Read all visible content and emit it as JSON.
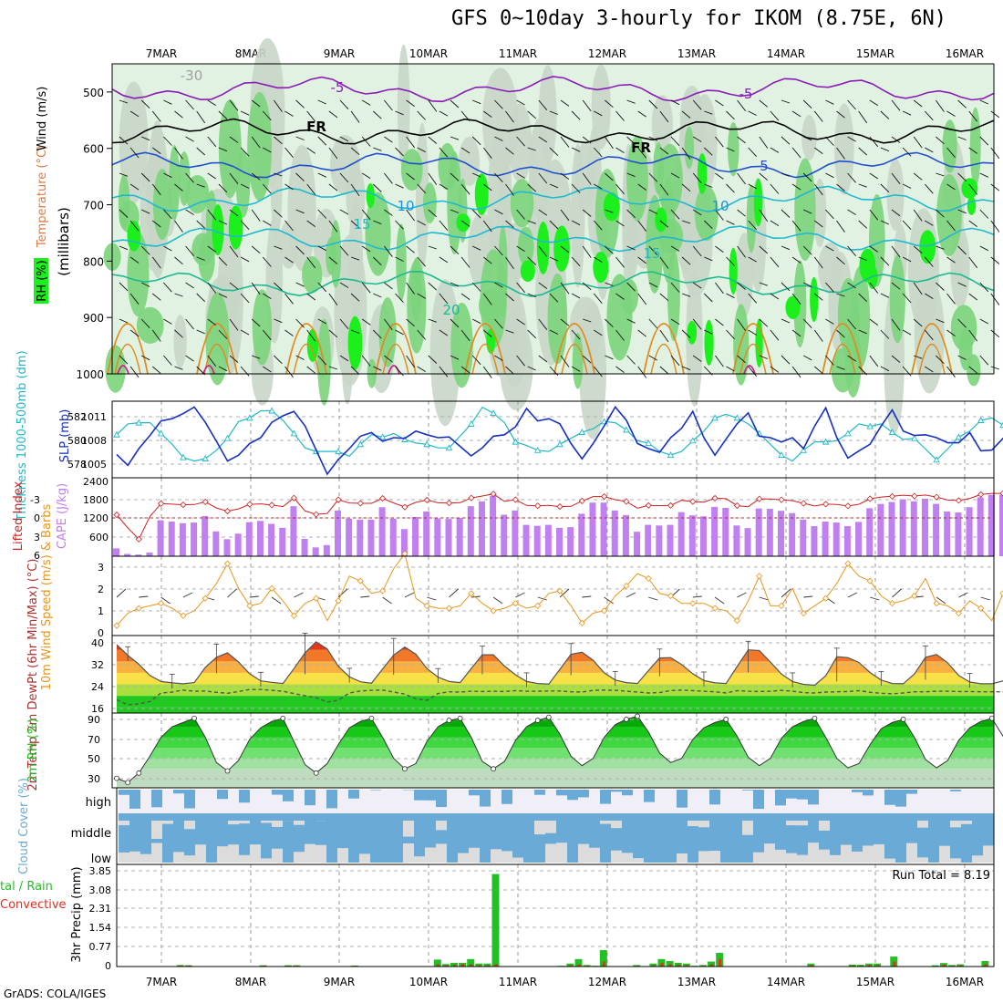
{
  "title": "GFS 0~10day 3-hourly for IKOM (8.75E, 6N)",
  "credit": "GrADS: COLA/IGES",
  "dates": [
    "7MAR",
    "8MAR",
    "9MAR",
    "10MAR",
    "11MAR",
    "12MAR",
    "13MAR",
    "14MAR",
    "15MAR",
    "16MAR"
  ],
  "colors": {
    "rh_light": "#e2f2e2",
    "rh_mid": "#c8d6c8",
    "rh_green": "#7bd47b",
    "rh_bright": "#1cf01c",
    "temp_purple": "#8a1cb8",
    "temp_blue1": "#2050d0",
    "temp_blue2": "#1e90e0",
    "temp_cyan": "#20b8d0",
    "temp_teal": "#1cb890",
    "temp_orange": "#e08a20",
    "temp_magenta": "#d0208a",
    "slp": "#1530c0",
    "thickness": "#20b8c8",
    "cape": "#c080f0",
    "lifted": "#d02020",
    "wind10": "#e8961c",
    "rh2m": "#1cc01c",
    "cloud": "#6aaad6",
    "cloud_gap": "#dcdcdc",
    "precip_total": "#22c022",
    "precip_conv": "#e03020"
  },
  "chart_data": [
    {
      "type": "heatmap",
      "panel": "Vertical profile",
      "ylabel": "(millibars)",
      "legend_labels": [
        "RH (%)",
        "Temperature (°C)",
        "Wind (m/s)"
      ],
      "y_ticks": [
        "500",
        "600",
        "700",
        "800",
        "900",
        "1000"
      ],
      "ylim": [
        1000,
        450
      ],
      "isotherm_labels": [
        "-30",
        "-5",
        "-5",
        "FR",
        "FR",
        "5",
        "10",
        "10",
        "15",
        "15",
        "20"
      ],
      "isotherms": [
        {
          "level": "-5",
          "p": 495
        },
        {
          "level": "FR",
          "p": 570
        },
        {
          "level": "5",
          "p": 630
        },
        {
          "level": "10",
          "p": 690
        },
        {
          "level": "15",
          "p": 760
        },
        {
          "level": "20",
          "p": 840
        }
      ]
    },
    {
      "type": "line",
      "panel": "SLP / Thickness",
      "ylabel_left": "Thickness 1000-500mb (dm)",
      "ylabel_right": "SLP (mb)",
      "left_ticks": [
        "582",
        "580",
        "578"
      ],
      "right_ticks": [
        "1011",
        "1008",
        "1005"
      ],
      "series": [
        {
          "name": "SLP (mb)",
          "ylim": [
            1002.5,
            1013
          ],
          "values": [
            1005.7,
            1004.2,
            1006.5,
            1008.3,
            1010.3,
            1010.6,
            1011.3,
            1012.2,
            1010.1,
            1007.5,
            1004.8,
            1005.6,
            1007.2,
            1008.0,
            1010.1,
            1011.0,
            1011.6,
            1009.6,
            1006.3,
            1003.0,
            1005.0,
            1006.5,
            1008.2,
            1008.7,
            1007.5,
            1008.0,
            1007.9,
            1008.9,
            1008.4,
            1008.0,
            1008.1,
            1006.8,
            1005.5,
            1006.6,
            1008.2,
            1008.4,
            1009.5,
            1012.0,
            1010.3,
            1010.6,
            1009.9,
            1007.2,
            1005.1,
            1007.2,
            1009.6,
            1012.2,
            1010.4,
            1007.2,
            1006.5,
            1006.0,
            1008.0,
            1009.3,
            1011.6,
            1008.0,
            1005.6,
            1007.8,
            1009.9,
            1011.4,
            1008.2,
            1008.0,
            1007.4,
            1008.0,
            1006.5,
            1009.6,
            1012.1,
            1008.0,
            1005.2,
            1006.2,
            1007.1,
            1009.6,
            1011.8,
            1008.9,
            1008.3,
            1008.4,
            1008.0,
            1007.3,
            1007.3,
            1008.7,
            1006.2,
            1006.3,
            1007.9,
            1008.7,
            1008.1,
            1008.8,
            1010.3,
            1011.6,
            1009.0,
            1008.7,
            1006.3,
            1008.1,
            1008.4,
            1009.3,
            1011.5
          ]
        },
        {
          "name": "Thickness (dm)",
          "ylim": [
            576.6,
            583
          ],
          "values": [
            580.2,
            581.1,
            581.2,
            581.2,
            580.3,
            579.4,
            578.3,
            578.0,
            578.2,
            578.9,
            579.9,
            581.3,
            581.6,
            582.2,
            582.2,
            581.4,
            580.3,
            579.1,
            578.8,
            578.8,
            578.8,
            578.4,
            579.4,
            580.2,
            580.0,
            580.3,
            579.8,
            579.5,
            579.4,
            579.1,
            579.1,
            580.1,
            581.1,
            582.5,
            582.0,
            581.2,
            579.6,
            579.3,
            578.9,
            578.8,
            579.4,
            579.9,
            580.4,
            580.7,
            581.3,
            581.2,
            580.6,
            579.7,
            579.5,
            578.8,
            578.5,
            578.8,
            579.7,
            580.5,
            581.6,
            581.9,
            581.6,
            581.1,
            580.3,
            579.4,
            578.5,
            578.0,
            578.9,
            579.6,
            579.6,
            579.7,
            580.3,
            581.1,
            580.9,
            581.1,
            580.4,
            579.8,
            579.9,
            579.0,
            578.1,
            579.0,
            580.0,
            580.5,
            581.4,
            581.6,
            581.0,
            580.6,
            580.3,
            579.2,
            579.3,
            579.2,
            579.3,
            579.1,
            578.9,
            579.3,
            579.5,
            580.3,
            580.9
          ]
        }
      ]
    },
    {
      "type": "bar",
      "panel": "CAPE / Lifted Index",
      "ylabel_left": "Lifted Index",
      "ylabel_right": "CAPE (J/kg)",
      "cape_ticks": [
        "2400",
        "1800",
        "1200",
        "600"
      ],
      "li_ticks": [
        "-3",
        "0",
        "3",
        "6"
      ],
      "cape_ylim": [
        0,
        2400
      ],
      "li_ylim": [
        6,
        -6
      ],
      "cape_values": [
        240,
        70,
        50,
        110,
        1100,
        1060,
        1010,
        1030,
        1230,
        760,
        520,
        690,
        1040,
        1080,
        990,
        870,
        1530,
        530,
        270,
        340,
        1400,
        1150,
        1120,
        1120,
        1500,
        1150,
        830,
        1200,
        1370,
        1160,
        1140,
        1170,
        1530,
        1680,
        1840,
        1270,
        1400,
        960,
        930,
        960,
        870,
        890,
        1300,
        1640,
        1640,
        1400,
        1260,
        750,
        960,
        940,
        960,
        1350,
        1250,
        1220,
        1510,
        1480,
        940,
        860,
        1460,
        1450,
        1390,
        1320,
        1120,
        920,
        1060,
        1030,
        920,
        1050,
        1470,
        1600,
        1660,
        1740,
        1680,
        1760,
        1600,
        1370,
        1340,
        1500,
        1800,
        1880,
        1880,
        1750,
        1660,
        1600,
        1200,
        1190,
        1150,
        1120,
        1660,
        1630,
        1630,
        1540,
        1370,
        1330,
        1380,
        1370
      ]
    },
    {
      "type": "line",
      "panel": "10m Wind",
      "ylabel": "10m Wind Speed (m/s) & Barbs",
      "y_ticks": [
        "3",
        "2",
        "1",
        "0"
      ],
      "ylim": [
        0,
        3.2
      ],
      "values": [
        0.4,
        0.9,
        1.1,
        1.2,
        1.3,
        1.1,
        0.8,
        1.0,
        1.5,
        2.1,
        2.9,
        1.9,
        1.2,
        1.3,
        1.9,
        1.4,
        0.8,
        1.3,
        1.5,
        0.6,
        1.4,
        2.4,
        2.2,
        1.7,
        1.8,
        2.7,
        3.3,
        1.5,
        1.2,
        1.1,
        1.1,
        1.2,
        1.7,
        1.3,
        1.0,
        1.1,
        1.3,
        1.1,
        1.2,
        1.7,
        1.8,
        1.2,
        0.5,
        0.9,
        1.0,
        1.6,
        2.0,
        2.5,
        2.3,
        1.7,
        1.6,
        1.3,
        1.3,
        1.3,
        1.1,
        1.0,
        0.6,
        1.4,
        2.4,
        1.2,
        1.2,
        1.9,
        0.9,
        1.2,
        1.5,
        2.1,
        2.9,
        2.4,
        2.2,
        1.6,
        1.3,
        1.4,
        1.6,
        2.3,
        1.3,
        1.2,
        0.9,
        1.4,
        1.1,
        0.6,
        1.7,
        2.8,
        1.1,
        0.9,
        0.2,
        1.3,
        1.5,
        0.6,
        1.5,
        1.8,
        1.4,
        2.2,
        1.3,
        1.8,
        2.7,
        0.9,
        1.2,
        0.5
      ]
    },
    {
      "type": "area",
      "panel": "2m Temp",
      "ylabel": "2m Temp 2m DewPt (6hr Min/Max) (°C)",
      "y_ticks": [
        "40",
        "32",
        "24",
        "16"
      ],
      "ylim": [
        14,
        41
      ],
      "temp": [
        37.8,
        34.1,
        31.0,
        27.1,
        25.0,
        24.5,
        24.2,
        24.6,
        29.9,
        33.4,
        35.0,
        31.8,
        27.7,
        25.2,
        24.7,
        24.3,
        29.5,
        35.0,
        38.8,
        36.3,
        30.3,
        26.6,
        24.9,
        24.4,
        29.3,
        34.2,
        37.0,
        34.5,
        29.5,
        26.5,
        25.0,
        24.6,
        29.5,
        34.3,
        34.3,
        30.4,
        27.3,
        25.0,
        24.3,
        24.1,
        29.2,
        34.5,
        35.2,
        32.4,
        28.0,
        25.5,
        24.6,
        24.3,
        28.8,
        33.2,
        33.3,
        30.9,
        27.7,
        25.3,
        24.5,
        24.3,
        30.2,
        36.0,
        35.8,
        31.8,
        27.6,
        25.0,
        24.0,
        23.7,
        27.0,
        33.6,
        33.3,
        31.6,
        28.1,
        25.5,
        24.3,
        24.2,
        27.6,
        33.4,
        34.4,
        31.5,
        27.1,
        24.8,
        24.2,
        24.2,
        25.2,
        24.6,
        23.9,
        24.2,
        27.0,
        33.2,
        34.9,
        31.5,
        28.2,
        25.2,
        24.2,
        24.0,
        24.0
      ],
      "dewpt": [
        18.6,
        16.9,
        17.2,
        18.0,
        21.0,
        21.3,
        22.0,
        21.6,
        21.7,
        21.2,
        20.9,
        21.5,
        22.2,
        22.2,
        21.9,
        21.6,
        20.8,
        20.0,
        19.4,
        17.8,
        18.5,
        21.0,
        21.7,
        21.9,
        22.0,
        21.3,
        20.6,
        19.0,
        18.4,
        20.8,
        21.4,
        21.3,
        21.6,
        21.5,
        21.6,
        21.5,
        21.8,
        21.6,
        21.6,
        21.7,
        21.7,
        21.4,
        21.3,
        21.9,
        22.0,
        21.9,
        21.6,
        21.3,
        21.0,
        21.1,
        21.8,
        22.0,
        21.8,
        21.6,
        21.4,
        21.0,
        21.8,
        21.6,
        21.5,
        21.6,
        21.9,
        21.6,
        21.1,
        21.0,
        21.3,
        21.4,
        21.5,
        21.8,
        21.2,
        20.9,
        20.7,
        21.0,
        21.4,
        21.4,
        21.6,
        21.6,
        21.5,
        21.5,
        21.4,
        21.4,
        21.4,
        21.3,
        21.6,
        21.4,
        21.6,
        21.8,
        22.0,
        21.9,
        21.6,
        21.5,
        21.6,
        21.7,
        21.7
      ]
    },
    {
      "type": "area",
      "panel": "2m RH",
      "ylabel": "2m RH (%)",
      "y_ticks": [
        "90",
        "70",
        "50",
        "30"
      ],
      "ylim": [
        22,
        93
      ],
      "values": [
        31,
        27,
        36,
        52,
        70,
        80,
        84,
        88,
        70,
        46,
        38,
        48,
        68,
        79,
        85,
        88,
        66,
        44,
        36,
        45,
        63,
        79,
        85,
        88,
        70,
        50,
        40,
        45,
        66,
        80,
        86,
        88,
        70,
        47,
        40,
        47,
        67,
        80,
        86,
        89,
        73,
        52,
        43,
        50,
        70,
        82,
        87,
        90,
        75,
        55,
        46,
        50,
        68,
        79,
        84,
        87,
        71,
        51,
        43,
        50,
        69,
        80,
        85,
        88,
        70,
        50,
        41,
        45,
        63,
        78,
        84,
        87,
        70,
        49,
        41,
        48,
        67,
        79,
        85,
        88,
        71,
        53,
        46,
        50,
        68,
        79,
        85,
        88,
        68,
        47,
        38,
        45,
        70,
        83,
        88,
        90
      ]
    },
    {
      "type": "heatmap",
      "panel": "Cloud Cover",
      "ylabel": "Cloud Cover (%)",
      "layer_labels": [
        "high",
        "middle",
        "low"
      ]
    },
    {
      "type": "bar",
      "panel": "Precipitation",
      "ylabel": "3hr Precip (mm)",
      "legend_left_1": "tal / Rain",
      "legend_left_2": "Convective",
      "y_ticks": [
        "3.85",
        "3.08",
        "2.31",
        "1.54",
        "0.77",
        "0"
      ],
      "ylim": [
        0,
        3.85
      ],
      "run_total_label": "Run Total = 8.19",
      "total": [
        0,
        0,
        0,
        0,
        0,
        0,
        0,
        0.06,
        0.05,
        0,
        0,
        0,
        0,
        0,
        0,
        0,
        0,
        0.05,
        0,
        0,
        0.05,
        0.05,
        0,
        0,
        0,
        0,
        0,
        0,
        0.04,
        0,
        0,
        0,
        0,
        0,
        0,
        0,
        0,
        0,
        0.28,
        0.1,
        0.15,
        0.15,
        0.3,
        0.12,
        0.12,
        3.72,
        0,
        0,
        0,
        0,
        0,
        0,
        0,
        0.03,
        0.12,
        0.3,
        0.06,
        0.03,
        0.66,
        0,
        0,
        0,
        0.06,
        0.02,
        0.12,
        0.3,
        0.22,
        0.15,
        0.12,
        0.03,
        0.06,
        0.2,
        0.55,
        0,
        0,
        0,
        0,
        0,
        0,
        0,
        0,
        0,
        0,
        0.12,
        0,
        0,
        0,
        0,
        0.08,
        0.07,
        0.12,
        0.12,
        0.02,
        0.4,
        0,
        0,
        0,
        0,
        0.05,
        0.14,
        0.06,
        0.09,
        0,
        0,
        0.22
      ],
      "convective": [
        0,
        0,
        0,
        0,
        0,
        0,
        0,
        0.05,
        0.04,
        0,
        0,
        0,
        0,
        0,
        0,
        0,
        0,
        0.04,
        0,
        0,
        0.04,
        0.04,
        0,
        0,
        0,
        0,
        0,
        0,
        0.03,
        0,
        0,
        0,
        0,
        0,
        0,
        0,
        0,
        0,
        0.1,
        0.05,
        0.08,
        0.1,
        0.1,
        0.05,
        0.05,
        0.1,
        0,
        0,
        0,
        0,
        0,
        0,
        0,
        0.02,
        0.05,
        0.08,
        0.04,
        0.02,
        0.2,
        0,
        0,
        0,
        0.03,
        0.01,
        0.05,
        0.15,
        0.1,
        0.08,
        0.05,
        0.02,
        0.04,
        0.1,
        0.3,
        0,
        0,
        0,
        0,
        0,
        0,
        0,
        0,
        0,
        0,
        0.06,
        0,
        0,
        0,
        0,
        0.04,
        0.04,
        0.06,
        0.06,
        0.01,
        0.2,
        0,
        0,
        0,
        0,
        0.03,
        0.07,
        0.04,
        0.05,
        0,
        0,
        0.1
      ]
    }
  ]
}
